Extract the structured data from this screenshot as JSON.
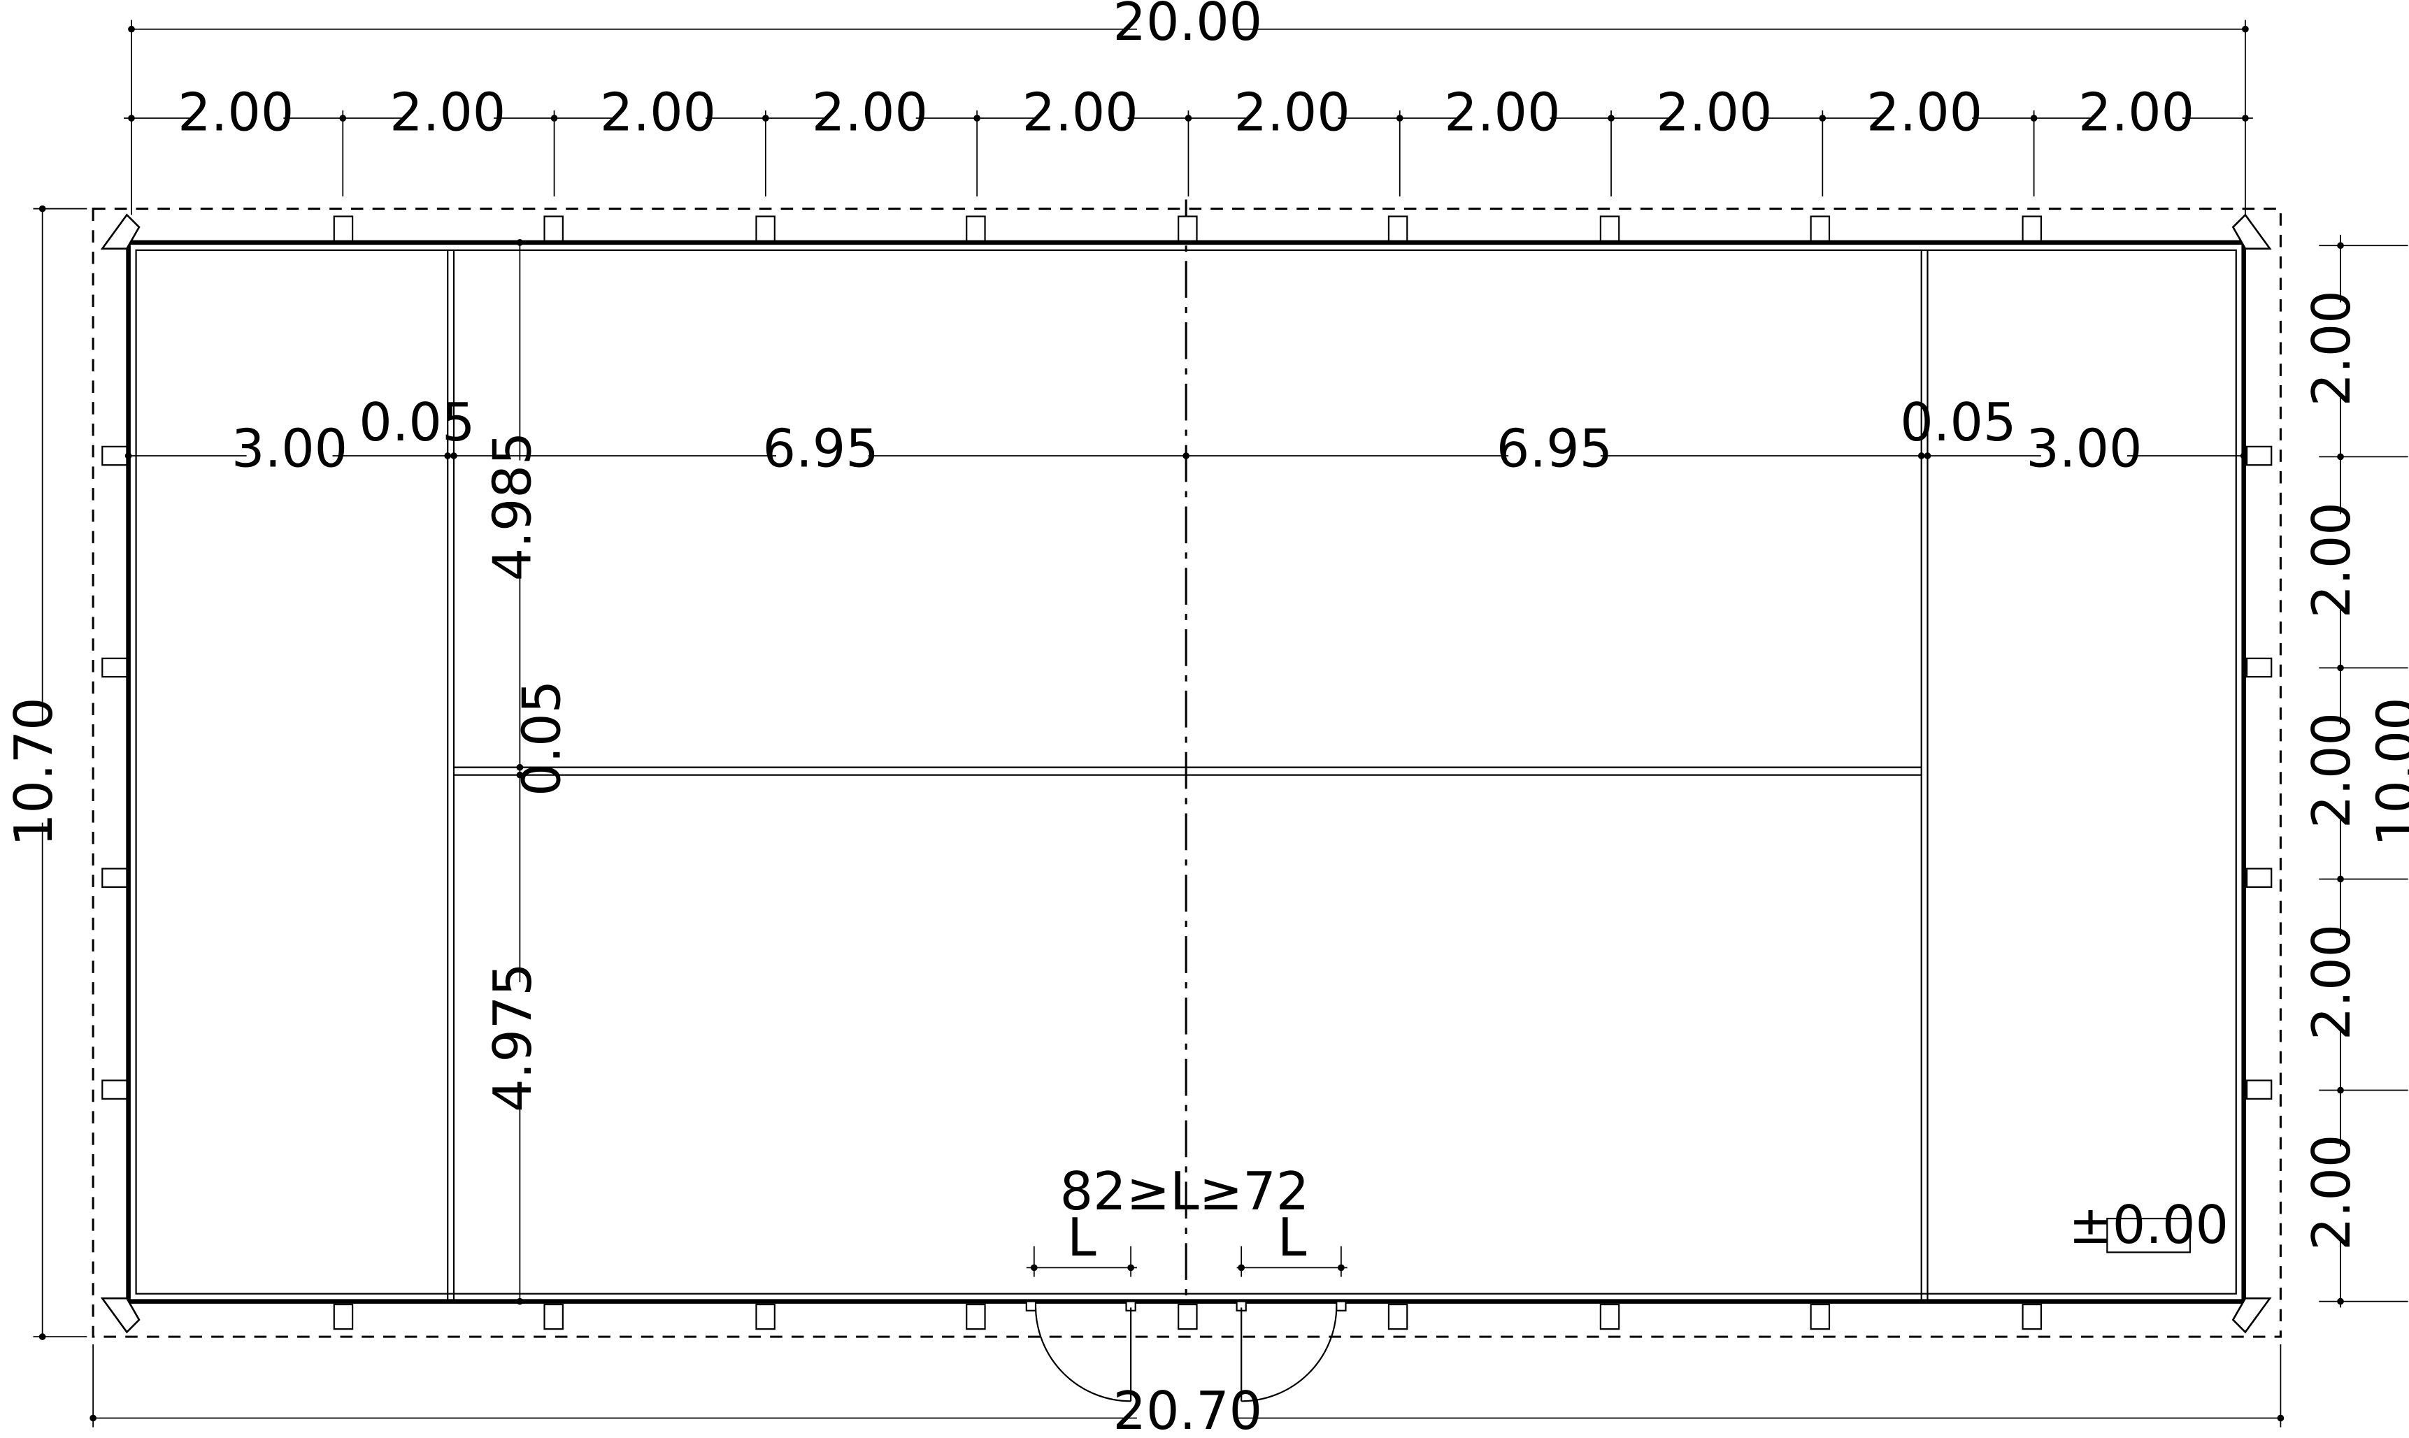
{
  "drawing": {
    "unit": "m",
    "top_overall": "20.00",
    "bottom_overall": "20.70",
    "left_overall": "10.70",
    "right_overall": "10.00",
    "top_module_label": "2.00",
    "top_modules": [
      "2.00",
      "2.00",
      "2.00",
      "2.00",
      "2.00",
      "2.00",
      "2.00",
      "2.00",
      "2.00",
      "2.00"
    ],
    "right_modules": [
      "2.00",
      "2.00",
      "2.00",
      "2.00",
      "2.00"
    ],
    "horizontal_row": {
      "left_room": "3.00",
      "left_wall": "0.05",
      "center_left": "6.95",
      "center_right": "6.95",
      "right_wall": "0.05",
      "right_room": "3.00"
    },
    "vertical_column": {
      "upper": "4.985",
      "wall": "0.05",
      "lower": "4.975"
    },
    "door_constraint": "82≥L≥72",
    "door_left_label": "L",
    "door_right_label": "L",
    "level_mark": "±0.00"
  }
}
